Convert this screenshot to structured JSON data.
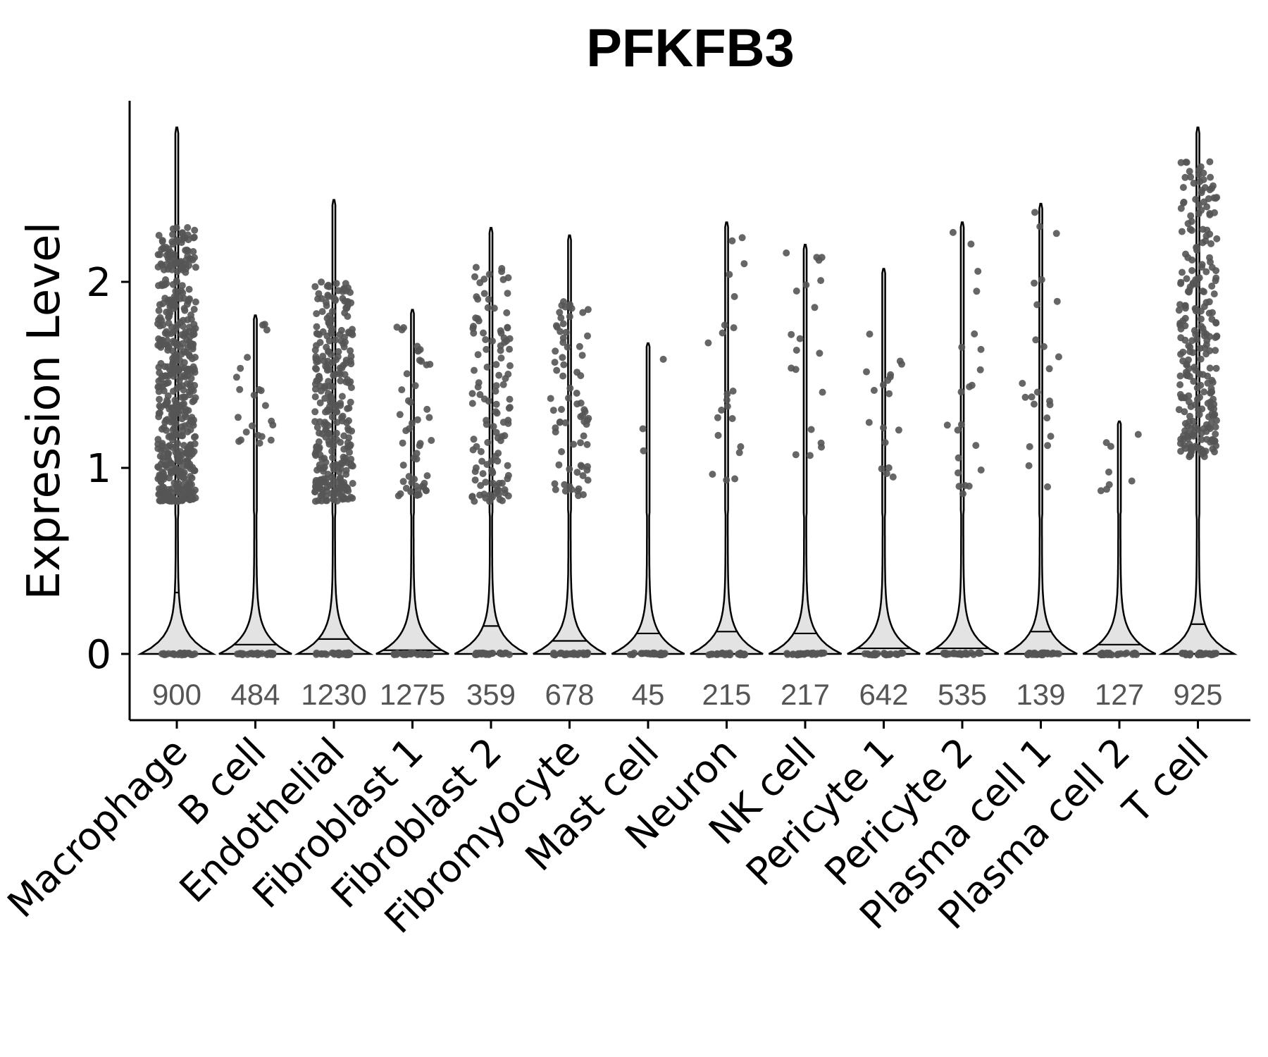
{
  "chart_data": {
    "type": "violin",
    "title": "PFKFB3",
    "ylabel": "Expression Level",
    "xlabel": "",
    "ylim": [
      -0.35,
      3.0
    ],
    "yticks": [
      0,
      1,
      2
    ],
    "grid": false,
    "legend": "none",
    "colors": {
      "violin_fill": "#e3e3e3",
      "points": "#555555",
      "count_text": "#555555"
    },
    "categories": [
      "Macrophage",
      "B cell",
      "Endothelial",
      "Fibroblast 1",
      "Fibroblast 2",
      "Fibromyocyte",
      "Mast cell",
      "Neuron",
      "NK cell",
      "Pericyte 1",
      "Pericyte 2",
      "Plasma cell 1",
      "Plasma cell 2",
      "T cell"
    ],
    "counts": [
      "900",
      "484",
      "1230",
      "1275",
      "359",
      "678",
      "45",
      "215",
      "217",
      "642",
      "535",
      "139",
      "127",
      "925"
    ],
    "max_values": [
      2.83,
      1.82,
      2.44,
      1.85,
      2.29,
      2.25,
      1.67,
      2.32,
      2.2,
      2.07,
      2.32,
      2.42,
      1.25,
      2.83
    ],
    "medians": [
      0.33,
      0.05,
      0.08,
      0.02,
      0.15,
      0.07,
      0.11,
      0.12,
      0.11,
      0.03,
      0.03,
      0.12,
      0.05,
      0.16
    ],
    "positive_range": [
      [
        0.82,
        2.3
      ],
      [
        1.13,
        1.82
      ],
      [
        0.82,
        2.0
      ],
      [
        0.85,
        1.77
      ],
      [
        0.82,
        2.1
      ],
      [
        0.85,
        1.9
      ],
      [
        1.08,
        1.67
      ],
      [
        0.93,
        2.32
      ],
      [
        1.06,
        2.2
      ],
      [
        0.87,
        2.07
      ],
      [
        0.85,
        2.32
      ],
      [
        0.83,
        2.42
      ],
      [
        0.87,
        1.25
      ],
      [
        1.06,
        2.65
      ]
    ],
    "positive_points": [
      520,
      22,
      300,
      50,
      120,
      75,
      3,
      22,
      20,
      18,
      22,
      24,
      8,
      260
    ]
  }
}
